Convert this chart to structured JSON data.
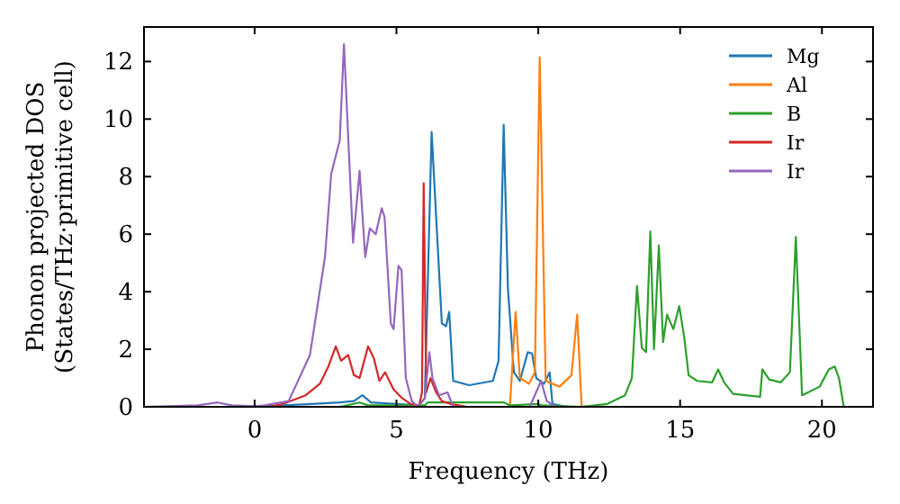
{
  "chart_data": {
    "type": "line",
    "xlabel": "Frequency (THz)",
    "ylabel": "Phonon projected DOS\n(States/THz·primitive cell)",
    "xlim": [
      -3.9,
      21.8
    ],
    "ylim": [
      0,
      13.2
    ],
    "xticks": [
      0,
      5,
      10,
      15,
      20
    ],
    "yticks": [
      0,
      2,
      4,
      6,
      8,
      10,
      12
    ],
    "legend": "top right",
    "grid": false,
    "series": [
      {
        "name": "Mg",
        "color": "#1f77b4",
        "x": [
          0,
          1,
          2,
          3,
          3.5,
          3.8,
          4.1,
          5,
          5.8,
          6.0,
          6.24,
          6.6,
          6.75,
          6.86,
          7.0,
          7.56,
          8.4,
          8.6,
          8.78,
          8.93,
          9.14,
          9.35,
          9.63,
          9.78,
          9.93,
          10.2,
          10.4,
          10.5,
          11
        ],
        "values": [
          0,
          0.05,
          0.1,
          0.15,
          0.2,
          0.4,
          0.15,
          0.1,
          0.05,
          0.3,
          9.55,
          2.9,
          2.8,
          3.3,
          0.9,
          0.75,
          0.9,
          1.6,
          9.8,
          4.1,
          1.2,
          0.9,
          1.9,
          1.85,
          1.0,
          0.8,
          1.2,
          0.1,
          0
        ]
      },
      {
        "name": "Al",
        "color": "#ff7f0e",
        "x": [
          9.0,
          9.2,
          9.35,
          9.67,
          9.88,
          10.05,
          10.26,
          10.75,
          11.17,
          11.37,
          11.53
        ],
        "values": [
          0,
          3.3,
          1.0,
          0.8,
          1.2,
          12.15,
          0.9,
          0.7,
          1.1,
          3.2,
          0
        ]
      },
      {
        "name": "B",
        "color": "#2ca02c",
        "x": [
          3,
          3.7,
          4,
          6,
          6.1,
          8.8,
          9,
          10,
          10.1,
          11.5,
          12.43,
          13.06,
          13.3,
          13.48,
          13.65,
          13.8,
          13.95,
          14.08,
          14.25,
          14.4,
          14.54,
          14.76,
          14.97,
          15.14,
          15.3,
          15.6,
          16.13,
          16.34,
          16.55,
          16.87,
          17.82,
          17.9,
          18.14,
          18.55,
          18.87,
          19.08,
          19.3,
          19.92,
          20.24,
          20.45,
          20.6,
          20.77
        ],
        "values": [
          0,
          0.15,
          0.05,
          0.05,
          0.15,
          0.15,
          0.05,
          0.1,
          0.05,
          0,
          0.1,
          0.4,
          1.0,
          4.2,
          2.05,
          1.9,
          6.1,
          2.0,
          5.6,
          2.25,
          3.2,
          2.7,
          3.5,
          2.45,
          1.1,
          0.9,
          0.85,
          1.3,
          0.85,
          0.45,
          0.35,
          1.3,
          0.95,
          0.85,
          1.2,
          5.9,
          0.4,
          0.7,
          1.3,
          1.4,
          1.0,
          0
        ]
      },
      {
        "name": "Ir",
        "color": "#d62728",
        "x": [
          0.5,
          1.0,
          1.8,
          2.3,
          2.6,
          2.86,
          3.05,
          3.3,
          3.5,
          3.7,
          4.0,
          4.2,
          4.4,
          4.6,
          4.9,
          5.2,
          5.5,
          5.8,
          5.9,
          5.96,
          6.05,
          6.2,
          6.4,
          6.6,
          6.9,
          7.5
        ],
        "values": [
          0,
          0.1,
          0.4,
          0.8,
          1.4,
          2.1,
          1.6,
          1.8,
          1.1,
          1.0,
          2.1,
          1.7,
          0.9,
          1.2,
          0.6,
          0.3,
          0.1,
          0.05,
          0.5,
          7.77,
          0.5,
          1.0,
          0.5,
          0.2,
          0.1,
          0
        ]
      },
      {
        "name": "Ir",
        "color": "#9467bd",
        "x": [
          -3.9,
          -2,
          -1.3,
          -0.8,
          0,
          0.36,
          1.2,
          1.95,
          2.48,
          2.7,
          3.0,
          3.15,
          3.47,
          3.7,
          3.9,
          4.06,
          4.27,
          4.48,
          4.58,
          4.8,
          4.9,
          5.07,
          5.18,
          5.33,
          5.54,
          5.75,
          6.0,
          6.16,
          6.27,
          6.5,
          6.8,
          7.0,
          9.7,
          10.1,
          10.3,
          10.6
        ],
        "values": [
          0,
          0.05,
          0.15,
          0.05,
          0.02,
          0.05,
          0.2,
          1.8,
          5.2,
          8.1,
          9.25,
          12.6,
          5.7,
          8.2,
          5.2,
          6.2,
          6.0,
          6.9,
          6.6,
          2.9,
          2.7,
          4.9,
          4.75,
          1.0,
          0.2,
          0,
          0.3,
          1.9,
          1.0,
          0.4,
          0.5,
          0,
          0,
          0.9,
          0.2,
          0
        ]
      }
    ]
  }
}
